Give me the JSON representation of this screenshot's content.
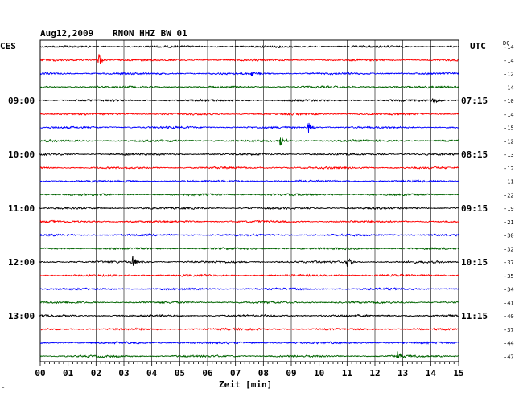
{
  "header": {
    "date": "Aug12,2009",
    "station": "RNON HHZ BW 01",
    "left_zone": "CES",
    "right_zone": "UTC",
    "dc_label": "DC"
  },
  "chart_data": {
    "type": "line",
    "title": "Aug12,2009   RNON HHZ BW 01",
    "xlabel": "Zeit [min]",
    "xlim": [
      0,
      15
    ],
    "x_ticks": [
      "00",
      "01",
      "02",
      "03",
      "04",
      "05",
      "06",
      "07",
      "08",
      "09",
      "10",
      "11",
      "12",
      "13",
      "14",
      "15"
    ],
    "grid": true,
    "trace_colors": [
      "#000000",
      "#ff0000",
      "#0000ff",
      "#006400"
    ],
    "left_time_labels": [
      {
        "row": 4,
        "text": "09:00"
      },
      {
        "row": 8,
        "text": "10:00"
      },
      {
        "row": 12,
        "text": "11:00"
      },
      {
        "row": 16,
        "text": "12:00"
      },
      {
        "row": 20,
        "text": "13:00"
      }
    ],
    "right_time_labels": [
      {
        "row": 4,
        "text": "07:15"
      },
      {
        "row": 8,
        "text": "08:15"
      },
      {
        "row": 12,
        "text": "09:15"
      },
      {
        "row": 16,
        "text": "10:15"
      },
      {
        "row": 20,
        "text": "11:15"
      }
    ],
    "dc_values": [
      "-14",
      "-14",
      "-12",
      "-14",
      "-10",
      "-14",
      "-15",
      "-12",
      "-13",
      "-12",
      "-11",
      "-22",
      "-19",
      "-21",
      "-30",
      "-32",
      "-37",
      "-35",
      "-34",
      "-41",
      "-40",
      "-37",
      "-44",
      "-47"
    ],
    "events": [
      {
        "row": 1,
        "minute": 2.1,
        "amp": 0.9
      },
      {
        "row": 2,
        "minute": 7.6,
        "amp": 0.6
      },
      {
        "row": 4,
        "minute": 14.1,
        "amp": 0.7
      },
      {
        "row": 6,
        "minute": 9.6,
        "amp": 1.0
      },
      {
        "row": 7,
        "minute": 8.6,
        "amp": 0.8
      },
      {
        "row": 16,
        "minute": 3.3,
        "amp": 1.0
      },
      {
        "row": 16,
        "minute": 11.0,
        "amp": 1.0
      },
      {
        "row": 23,
        "minute": 12.8,
        "amp": 0.8
      }
    ]
  }
}
